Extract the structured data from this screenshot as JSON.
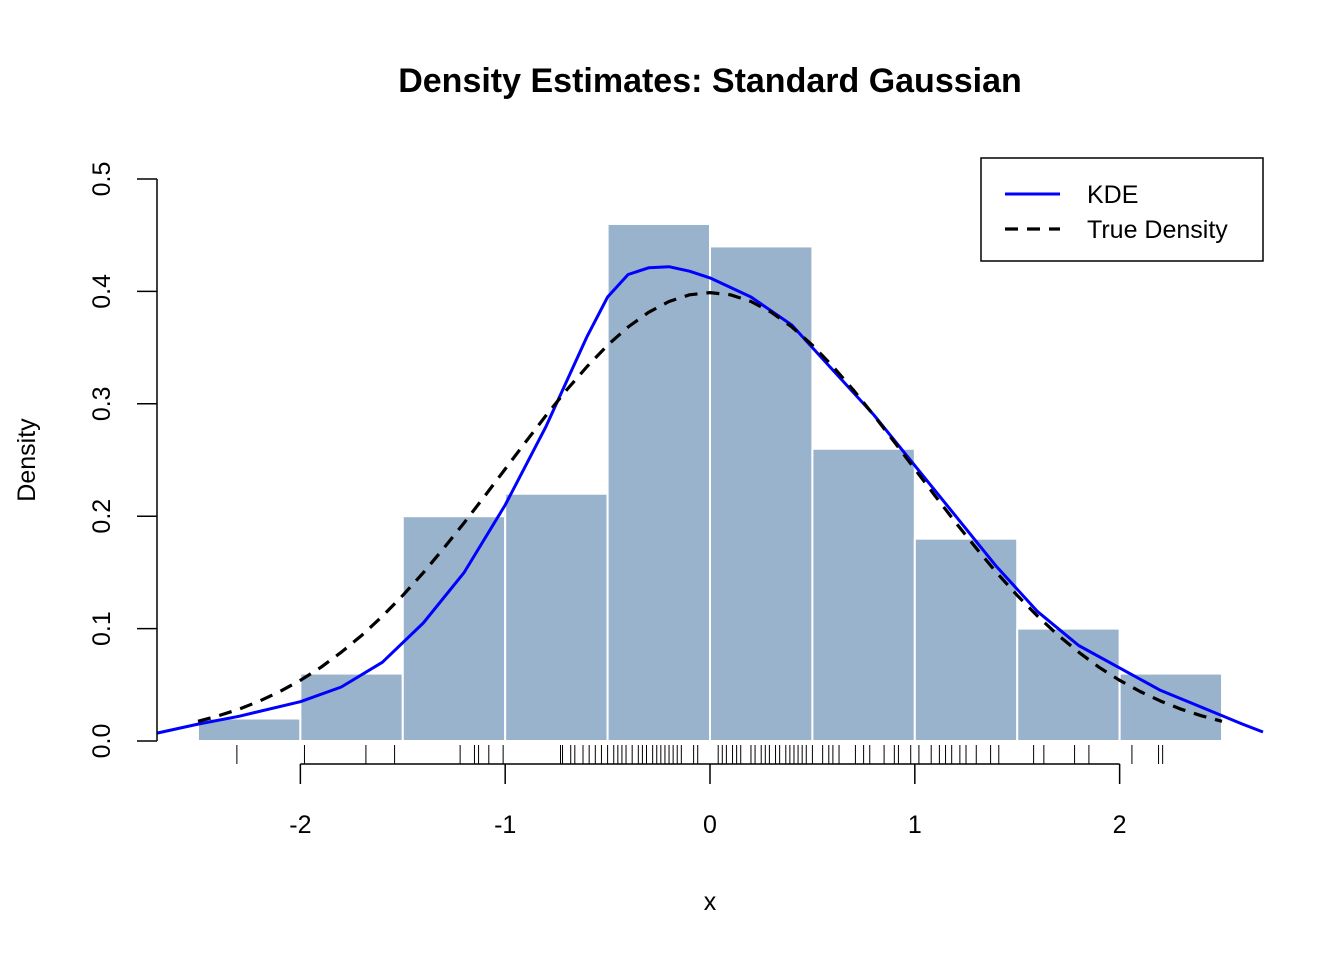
{
  "chart_data": {
    "type": "bar",
    "title": "Density Estimates: Standard Gaussian",
    "xlabel": "x",
    "ylabel": "Density",
    "xlim": [
      -2.7,
      2.7
    ],
    "ylim": [
      0,
      0.5
    ],
    "x_ticks": [
      "-2",
      "-1",
      "0",
      "1",
      "2"
    ],
    "y_ticks": [
      "0.0",
      "0.1",
      "0.2",
      "0.3",
      "0.4",
      "0.5"
    ],
    "histogram": {
      "color": "#9ab3cc",
      "bins": [
        {
          "start": -2.5,
          "end": -2.0,
          "density": 0.02
        },
        {
          "start": -2.0,
          "end": -1.5,
          "density": 0.06
        },
        {
          "start": -1.5,
          "end": -1.0,
          "density": 0.2
        },
        {
          "start": -1.0,
          "end": -0.5,
          "density": 0.22
        },
        {
          "start": -0.5,
          "end": 0.0,
          "density": 0.46
        },
        {
          "start": 0.0,
          "end": 0.5,
          "density": 0.44
        },
        {
          "start": 0.5,
          "end": 1.0,
          "density": 0.26
        },
        {
          "start": 1.0,
          "end": 1.5,
          "density": 0.18
        },
        {
          "start": 1.5,
          "end": 2.0,
          "density": 0.1
        },
        {
          "start": 2.0,
          "end": 2.5,
          "density": 0.06
        }
      ]
    },
    "series": [
      {
        "name": "KDE",
        "color": "#0000ff",
        "style": "solid",
        "x": [
          -2.7,
          -2.5,
          -2.3,
          -2.0,
          -1.8,
          -1.6,
          -1.4,
          -1.2,
          -1.0,
          -0.8,
          -0.6,
          -0.5,
          -0.4,
          -0.3,
          -0.2,
          -0.1,
          0.0,
          0.2,
          0.4,
          0.6,
          0.8,
          1.0,
          1.2,
          1.4,
          1.6,
          1.8,
          2.0,
          2.2,
          2.4,
          2.6,
          2.7
        ],
        "y": [
          0.007,
          0.015,
          0.022,
          0.035,
          0.048,
          0.07,
          0.105,
          0.15,
          0.21,
          0.28,
          0.36,
          0.395,
          0.415,
          0.421,
          0.422,
          0.418,
          0.412,
          0.395,
          0.37,
          0.33,
          0.29,
          0.245,
          0.2,
          0.155,
          0.115,
          0.085,
          0.065,
          0.045,
          0.03,
          0.015,
          0.008
        ]
      },
      {
        "name": "True Density",
        "color": "#000000",
        "style": "dashed",
        "x": [
          -2.5,
          -2.4,
          -2.3,
          -2.2,
          -2.1,
          -2.0,
          -1.9,
          -1.8,
          -1.7,
          -1.6,
          -1.5,
          -1.4,
          -1.3,
          -1.2,
          -1.1,
          -1.0,
          -0.9,
          -0.8,
          -0.7,
          -0.6,
          -0.5,
          -0.4,
          -0.3,
          -0.2,
          -0.1,
          0.0,
          0.1,
          0.2,
          0.3,
          0.4,
          0.5,
          0.6,
          0.7,
          0.8,
          0.9,
          1.0,
          1.1,
          1.2,
          1.3,
          1.4,
          1.5,
          1.6,
          1.7,
          1.8,
          1.9,
          2.0,
          2.1,
          2.2,
          2.3,
          2.4,
          2.5
        ],
        "y": [
          0.0175,
          0.0224,
          0.0283,
          0.0355,
          0.044,
          0.054,
          0.0656,
          0.079,
          0.094,
          0.1109,
          0.1295,
          0.1497,
          0.1714,
          0.1942,
          0.2179,
          0.242,
          0.2661,
          0.2897,
          0.3123,
          0.3332,
          0.3521,
          0.3683,
          0.3814,
          0.391,
          0.397,
          0.3989,
          0.397,
          0.391,
          0.3814,
          0.3683,
          0.3521,
          0.3332,
          0.3123,
          0.2897,
          0.2661,
          0.242,
          0.2179,
          0.1942,
          0.1714,
          0.1497,
          0.1295,
          0.1109,
          0.094,
          0.079,
          0.0656,
          0.054,
          0.044,
          0.0355,
          0.0283,
          0.0224,
          0.0175
        ]
      }
    ],
    "rug": [
      -2.31,
      -1.98,
      -1.68,
      -1.54,
      -1.22,
      -1.15,
      -1.13,
      -1.08,
      -1.01,
      -0.73,
      -0.72,
      -0.68,
      -0.66,
      -0.62,
      -0.59,
      -0.56,
      -0.53,
      -0.5,
      -0.47,
      -0.45,
      -0.43,
      -0.41,
      -0.38,
      -0.35,
      -0.33,
      -0.31,
      -0.28,
      -0.26,
      -0.24,
      -0.22,
      -0.2,
      -0.18,
      -0.16,
      -0.14,
      -0.08,
      -0.06,
      0.04,
      0.06,
      0.08,
      0.11,
      0.13,
      0.15,
      0.2,
      0.22,
      0.25,
      0.27,
      0.29,
      0.32,
      0.34,
      0.37,
      0.39,
      0.41,
      0.43,
      0.45,
      0.47,
      0.5,
      0.55,
      0.58,
      0.6,
      0.63,
      0.71,
      0.75,
      0.78,
      0.85,
      0.9,
      0.92,
      0.98,
      1.02,
      1.08,
      1.12,
      1.15,
      1.18,
      1.22,
      1.25,
      1.3,
      1.37,
      1.41,
      1.58,
      1.63,
      1.78,
      1.85,
      2.06,
      2.19,
      2.21
    ],
    "legend": {
      "position": "top-right",
      "entries": [
        {
          "label": "KDE",
          "color": "#0000ff",
          "style": "solid"
        },
        {
          "label": "True Density",
          "color": "#000000",
          "style": "dashed"
        }
      ]
    },
    "grid": false
  }
}
